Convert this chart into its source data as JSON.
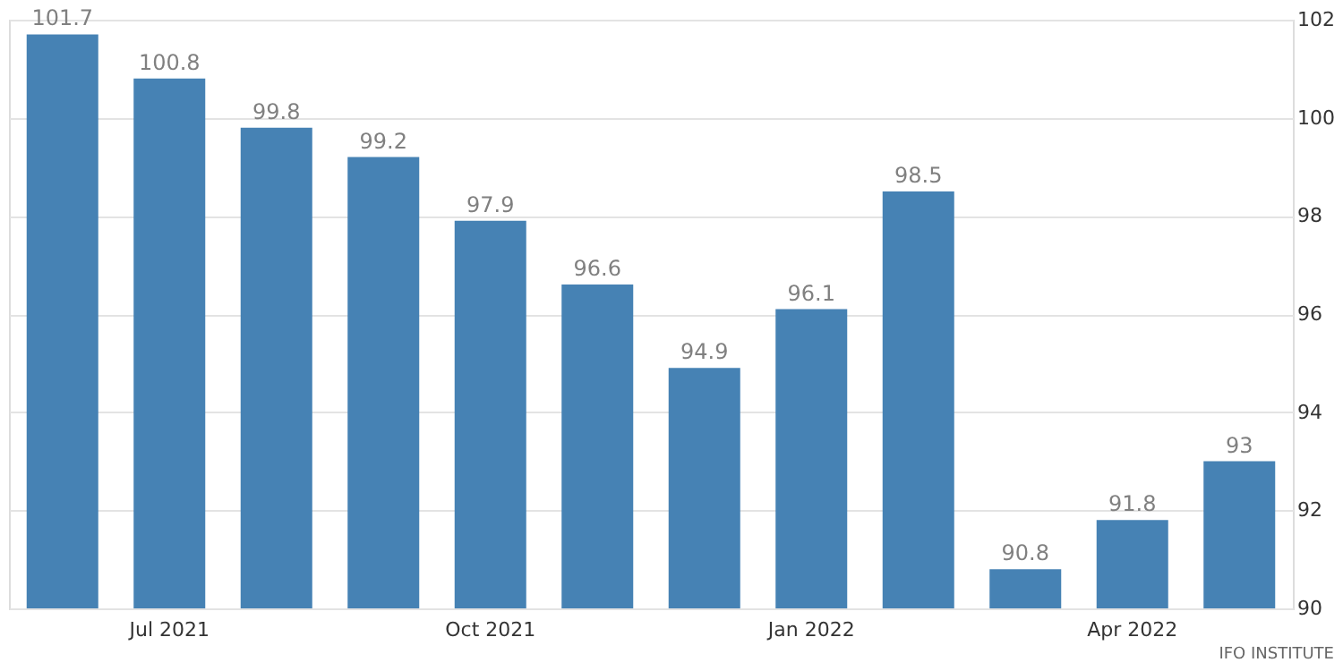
{
  "chart_data": {
    "type": "bar",
    "categories": [
      null,
      "Jul 2021",
      null,
      null,
      "Oct 2021",
      null,
      null,
      "Jan 2022",
      null,
      null,
      "Apr 2022",
      null
    ],
    "values": [
      101.7,
      100.8,
      99.8,
      99.2,
      97.9,
      96.6,
      94.9,
      96.1,
      98.5,
      90.8,
      91.8,
      93
    ],
    "color": "#4682b4",
    "ylim": [
      90,
      102
    ],
    "yticks": [
      90,
      92,
      94,
      96,
      98,
      100,
      102
    ],
    "grid": "y",
    "data_labels": true,
    "annotations": [
      "IFO INSTITUTE"
    ]
  }
}
